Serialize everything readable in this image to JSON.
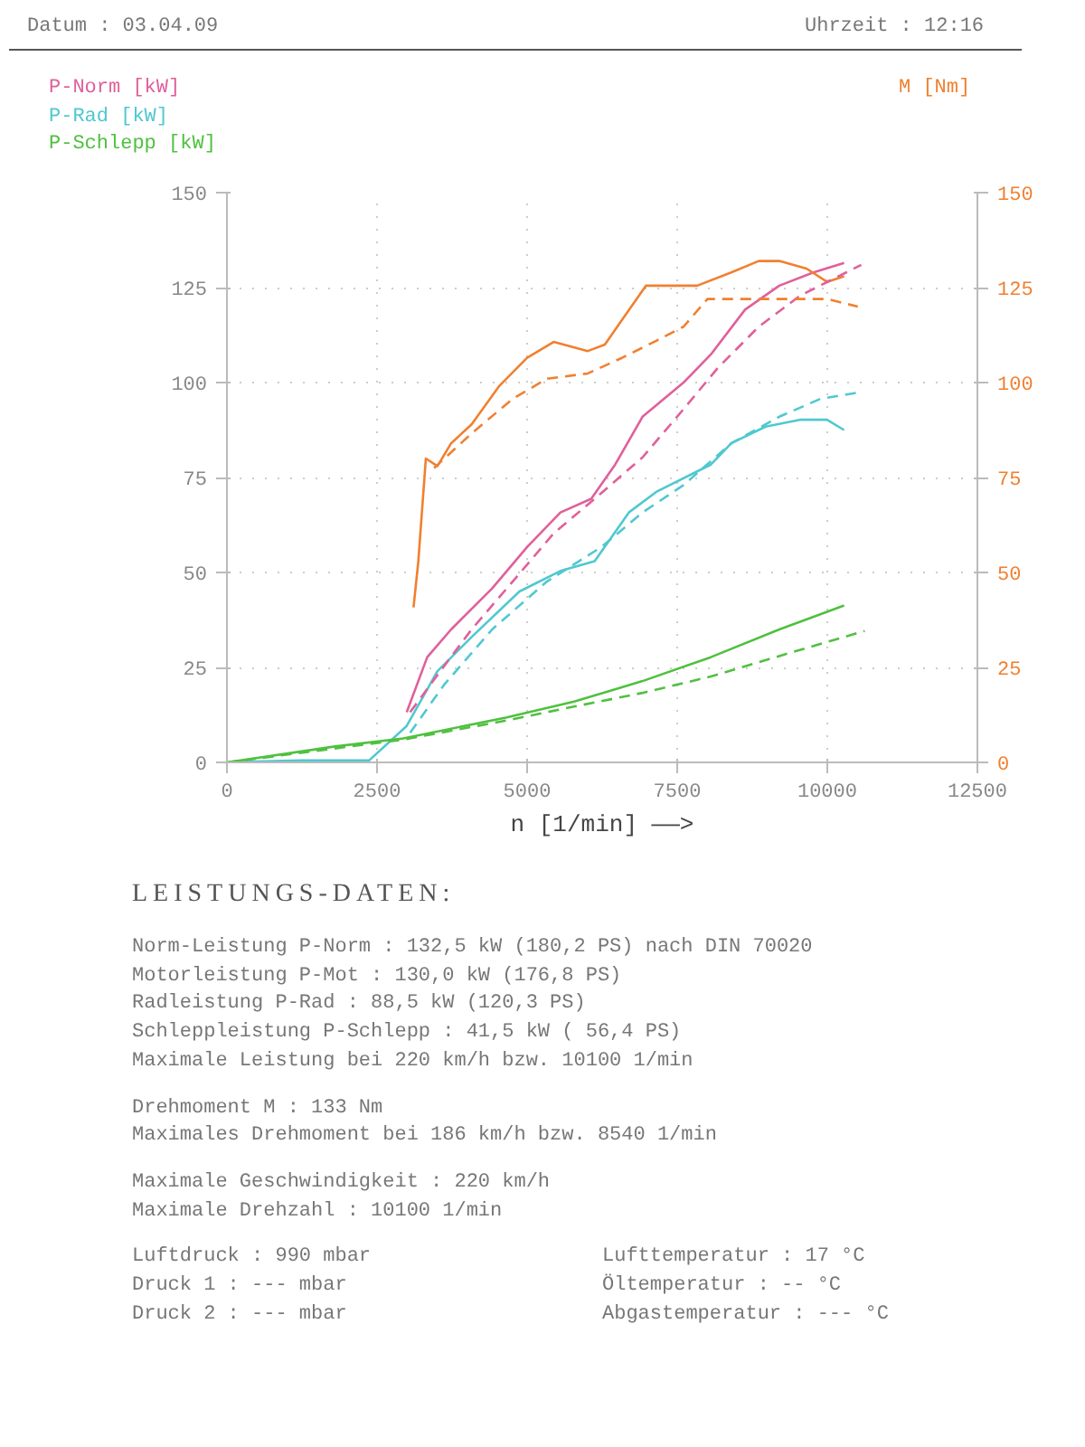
{
  "chart_data": {
    "type": "line",
    "xlabel": "n [1/min] ——>",
    "xlim": [
      0,
      12500
    ],
    "xticks": [
      0,
      2500,
      5000,
      7500,
      10000,
      12500
    ],
    "ylim": [
      0,
      150
    ],
    "yticks": [
      0,
      25,
      50,
      75,
      100,
      125,
      150
    ],
    "y2lim": [
      0,
      150
    ],
    "y2ticks": [
      0,
      25,
      50,
      75,
      100,
      125,
      150
    ],
    "grid": true,
    "legend": "top left",
    "line_style": "solid",
    "marker": "none",
    "series": [
      {
        "name": "P-Norm [kW]",
        "color": "#e0609a",
        "x": [
          2994,
          3336,
          3734,
          4417,
          5000,
          5555,
          6068,
          6466,
          6922,
          7605,
          8060,
          8630,
          9200,
          9768,
          10280
        ],
        "values": [
          13.2,
          27.7,
          35,
          45.8,
          56.7,
          65.8,
          69.4,
          78.4,
          91,
          100,
          107.4,
          119.2,
          125.5,
          129,
          131.5
        ]
      },
      {
        "name": "P-Rad [kW]",
        "color": "#50c8d0",
        "x": [
          0,
          1230,
          2368,
          2994,
          3506,
          4075,
          4872,
          5555,
          6125,
          6694,
          7150,
          8060,
          8400,
          8971,
          9540,
          9995,
          10280
        ],
        "values": [
          0,
          0.5,
          0.5,
          9.6,
          24,
          33,
          45,
          50.4,
          53,
          65.8,
          71.2,
          78.4,
          84,
          88.4,
          90.2,
          90.2,
          87.5
        ]
      },
      {
        "name": "P-Schlepp [kW]",
        "color": "#50c040",
        "x": [
          0,
          1800,
          2937,
          4645,
          5783,
          6922,
          8060,
          9200,
          10280
        ],
        "values": [
          0,
          4.2,
          6.3,
          11.8,
          16,
          21.4,
          27.7,
          35,
          41.3
        ]
      },
      {
        "name": "M [Nm]",
        "color": "#f08030",
        "axis": "y2",
        "x": [
          3108,
          3188,
          3313,
          3506,
          3734,
          4075,
          4531,
          5000,
          5442,
          6011,
          6295,
          6580,
          6978,
          7832,
          8400,
          8857,
          9200,
          9654,
          9995,
          10280
        ],
        "values": [
          40.8,
          53,
          80,
          78,
          84,
          89,
          99,
          106.5,
          110.7,
          108.3,
          110,
          116.5,
          125.5,
          125.5,
          129,
          132,
          132,
          130,
          126.5,
          128
        ]
      },
      {
        "color": "#e0609a",
        "line_style": "dashed",
        "x": [
          3051,
          3506,
          4075,
          4759,
          5442,
          6125,
          6922,
          7605,
          8174,
          8857,
          9540,
          10565
        ],
        "values": [
          13.2,
          23,
          35,
          47.6,
          60.3,
          69.4,
          80.3,
          93,
          103.8,
          114.7,
          122.8,
          131
        ]
      },
      {
        "color": "#50c8d0",
        "line_style": "dashed",
        "x": [
          3051,
          3620,
          4417,
          5328,
          6238,
          6922,
          7605,
          8400,
          9200,
          9882,
          10565
        ],
        "values": [
          7.8,
          20.5,
          35,
          47.6,
          56.7,
          65.8,
          73,
          84,
          91,
          95.7,
          97.5
        ]
      },
      {
        "color": "#50c040",
        "line_style": "dashed",
        "x": [
          0,
          2937,
          4645,
          5783,
          6922,
          8060,
          9200,
          10622
        ],
        "values": [
          0,
          6,
          11,
          14.7,
          18.3,
          22.6,
          28,
          34.6
        ]
      },
      {
        "color": "#f08030",
        "line_style": "dashed",
        "axis": "y2",
        "x": [
          3450,
          4075,
          4759,
          5328,
          6011,
          6580,
          7150,
          7605,
          8003,
          9200,
          9995,
          10508
        ],
        "values": [
          77.5,
          86.6,
          95.7,
          101,
          102.4,
          106.5,
          111,
          114.7,
          122,
          122,
          122,
          120
        ]
      }
    ],
    "annotations": [
      "Datum : 03.04.09",
      "Uhrzeit : 12:16",
      "LEISTUNGS-DATEN:",
      "Norm-Leistung P-Norm : 132,5 kW (180,2 PS) nach DIN 70020",
      "Motorleistung P-Mot : 130,0 kW (176,8 PS)",
      "Radleistung P-Rad : 88,5 kW (120,3 PS)",
      "Schleppleistung P-Schlepp : 41,5 kW ( 56,4 PS)",
      "Maximale Leistung bei 220 km/h bzw. 10100 1/min",
      "Drehmoment M : 133 Nm",
      "Maximales Drehmoment bei 186 km/h bzw. 8540 1/min",
      "Maximale Geschwindigkeit : 220 km/h",
      "Maximale Drehzahl : 10100 1/min",
      "Luftdruck : 990 mbar",
      "Lufttemperatur : 17 °C",
      "Druck 1 : --- mbar",
      "Öltemperatur : -- °C",
      "Druck 2 : --- mbar",
      "Abgastemperatur : --- °C"
    ]
  }
}
